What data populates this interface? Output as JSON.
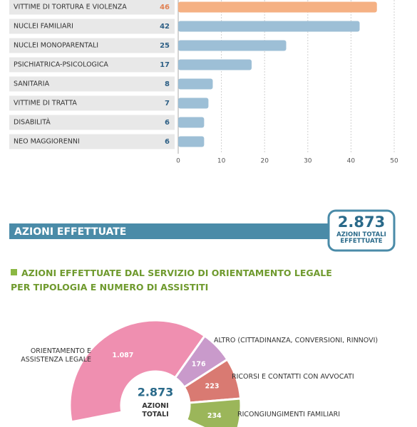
{
  "chart_data": [
    {
      "type": "bar",
      "orientation": "horizontal",
      "categories": [
        "VITTIME DI TORTURA E VIOLENZA",
        "NUCLEI FAMILIARI",
        "NUCLEI MONOPARENTALI",
        "PSICHIATRICA-PSICOLOGICA",
        "SANITARIA",
        "VITTIME DI TRATTA",
        "DISABILITÀ",
        "NEO MAGGIORENNI"
      ],
      "values": [
        46,
        42,
        25,
        17,
        8,
        7,
        6,
        6
      ],
      "colors": [
        "#f5b184",
        "#9dbfd6",
        "#9dbfd6",
        "#9dbfd6",
        "#9dbfd6",
        "#9dbfd6",
        "#9dbfd6",
        "#9dbfd6"
      ],
      "value_label_colors": [
        "#e08052",
        "#2d5f85",
        "#2d5f85",
        "#2d5f85",
        "#2d5f85",
        "#2d5f85",
        "#2d5f85",
        "#2d5f85"
      ],
      "xlim": [
        0,
        50
      ],
      "xticks": [
        0,
        10,
        20,
        30,
        40,
        50
      ],
      "grid": true
    },
    {
      "type": "pie",
      "donut": true,
      "title_lines": [
        "AZIONI EFFETTUATE DAL SERVIZIO DI ORIENTAMENTO LEGALE",
        "PER TIPOLOGIA E NUMERO DI ASSISTITI"
      ],
      "categories": [
        "ORIENTAMENTO E ASSISTENZA LEGALE",
        "ALTRO (CITTADINANZA, CONVERSIONI, RINNOVI)",
        "RICORSI E CONTATTI CON AVVOCATI",
        "RICONGIUNGIMENTI FAMILIARI"
      ],
      "values": [
        1087,
        176,
        223,
        234
      ],
      "value_labels": [
        "1.087",
        "176",
        "223",
        "234"
      ],
      "colors": [
        "#ef8fb0",
        "#c99acb",
        "#d97a72",
        "#9bb65a"
      ],
      "total": 2873,
      "total_label": "2.873",
      "center_text": "AZIONI TOTALI"
    }
  ],
  "section": {
    "title": "AZIONI EFFETTUATE",
    "badge_value": "2.873",
    "badge_text": "AZIONI TOTALI EFFETTUATE"
  }
}
